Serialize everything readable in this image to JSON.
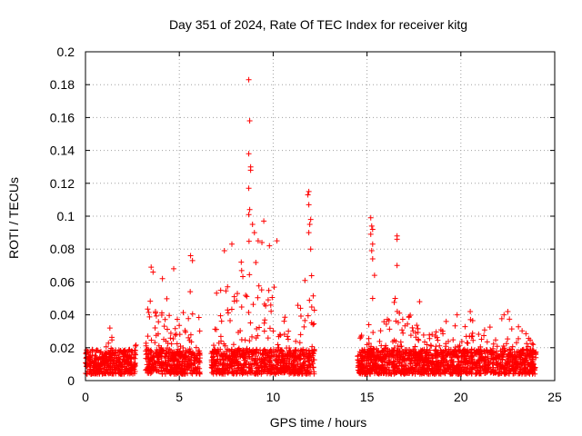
{
  "chart_data": {
    "type": "scatter",
    "title": "Day 351 of 2024, Rate Of TEC Index for receiver kitg",
    "xlabel": "GPS time / hours",
    "ylabel": "ROTI / TECUs",
    "xlim": [
      0,
      25
    ],
    "ylim": [
      0,
      0.2
    ],
    "xticks": [
      0,
      5,
      10,
      15,
      20,
      25
    ],
    "yticks": [
      0,
      0.02,
      0.04,
      0.06,
      0.08,
      0.1,
      0.12,
      0.14,
      0.16,
      0.18,
      0.2
    ],
    "grid": true,
    "marker": "+",
    "series_color": "#ff0000",
    "observation_windows_hours": [
      [
        0,
        2.7
      ],
      [
        3.2,
        6.1
      ],
      [
        6.7,
        12.2
      ],
      [
        14.5,
        24.0
      ]
    ],
    "background_range": [
      0.0,
      0.015
    ],
    "envelope": [
      [
        0.0,
        0.012
      ],
      [
        0.5,
        0.018
      ],
      [
        1.0,
        0.022
      ],
      [
        1.3,
        0.03
      ],
      [
        1.8,
        0.018
      ],
      [
        2.5,
        0.02
      ],
      [
        3.2,
        0.03
      ],
      [
        3.4,
        0.065
      ],
      [
        3.6,
        0.04
      ],
      [
        4.0,
        0.048
      ],
      [
        4.5,
        0.055
      ],
      [
        5.0,
        0.045
      ],
      [
        5.5,
        0.05
      ],
      [
        5.8,
        0.075
      ],
      [
        6.0,
        0.055
      ],
      [
        6.7,
        0.04
      ],
      [
        7.2,
        0.07
      ],
      [
        7.6,
        0.08
      ],
      [
        8.0,
        0.062
      ],
      [
        8.4,
        0.075
      ],
      [
        8.7,
        0.085
      ],
      [
        9.0,
        0.08
      ],
      [
        9.3,
        0.07
      ],
      [
        9.6,
        0.06
      ],
      [
        10.0,
        0.07
      ],
      [
        10.5,
        0.04
      ],
      [
        11.0,
        0.035
      ],
      [
        11.5,
        0.065
      ],
      [
        11.7,
        0.08
      ],
      [
        12.0,
        0.07
      ],
      [
        14.5,
        0.025
      ],
      [
        15.0,
        0.035
      ],
      [
        15.5,
        0.03
      ],
      [
        16.0,
        0.04
      ],
      [
        16.5,
        0.05
      ],
      [
        17.0,
        0.035
      ],
      [
        17.5,
        0.045
      ],
      [
        18.0,
        0.03
      ],
      [
        18.5,
        0.03
      ],
      [
        19.0,
        0.035
      ],
      [
        19.5,
        0.038
      ],
      [
        20.0,
        0.028
      ],
      [
        20.5,
        0.04
      ],
      [
        21.0,
        0.03
      ],
      [
        21.5,
        0.032
      ],
      [
        22.0,
        0.038
      ],
      [
        22.5,
        0.04
      ],
      [
        23.0,
        0.035
      ],
      [
        23.5,
        0.03
      ],
      [
        24.0,
        0.02
      ]
    ],
    "outliers": [
      [
        1.3,
        0.032
      ],
      [
        3.5,
        0.069
      ],
      [
        3.6,
        0.066
      ],
      [
        4.1,
        0.062
      ],
      [
        4.7,
        0.068
      ],
      [
        5.6,
        0.076
      ],
      [
        5.7,
        0.073
      ],
      [
        7.4,
        0.079
      ],
      [
        7.8,
        0.083
      ],
      [
        8.3,
        0.072
      ],
      [
        8.7,
        0.183
      ],
      [
        8.75,
        0.158
      ],
      [
        8.7,
        0.138
      ],
      [
        8.8,
        0.13
      ],
      [
        8.8,
        0.128
      ],
      [
        8.7,
        0.117
      ],
      [
        8.75,
        0.104
      ],
      [
        8.7,
        0.101
      ],
      [
        8.9,
        0.095
      ],
      [
        9.2,
        0.085
      ],
      [
        9.5,
        0.097
      ],
      [
        9.4,
        0.084
      ],
      [
        9.0,
        0.09
      ],
      [
        9.8,
        0.082
      ],
      [
        10.2,
        0.085
      ],
      [
        11.9,
        0.115
      ],
      [
        11.85,
        0.113
      ],
      [
        11.9,
        0.107
      ],
      [
        12.0,
        0.098
      ],
      [
        11.95,
        0.095
      ],
      [
        11.9,
        0.09
      ],
      [
        12.0,
        0.08
      ],
      [
        15.2,
        0.099
      ],
      [
        15.25,
        0.094
      ],
      [
        15.3,
        0.092
      ],
      [
        15.2,
        0.089
      ],
      [
        15.3,
        0.083
      ],
      [
        15.25,
        0.079
      ],
      [
        15.3,
        0.074
      ],
      [
        15.4,
        0.064
      ],
      [
        15.3,
        0.05
      ],
      [
        16.6,
        0.088
      ],
      [
        16.6,
        0.086
      ],
      [
        16.6,
        0.07
      ],
      [
        16.5,
        0.05
      ],
      [
        17.8,
        0.048
      ],
      [
        19.8,
        0.04
      ],
      [
        20.5,
        0.042
      ],
      [
        22.3,
        0.04
      ],
      [
        22.5,
        0.042
      ]
    ]
  }
}
